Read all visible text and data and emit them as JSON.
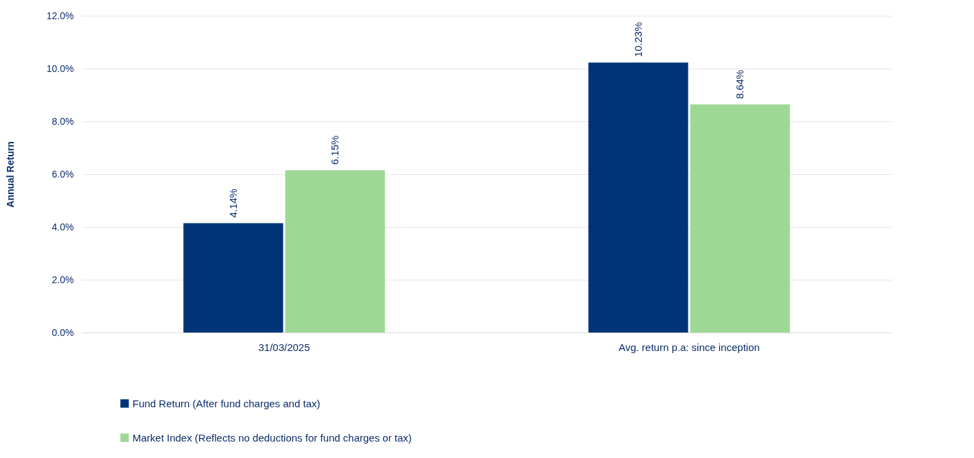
{
  "chart_data": {
    "type": "bar",
    "ylabel": "Annual Return",
    "categories": [
      "31/03/2025",
      "Avg. return p.a: since inception"
    ],
    "series": [
      {
        "name": "Fund Return (After fund charges and tax)",
        "color": "#003478",
        "values": [
          4.14,
          10.23
        ],
        "value_labels": [
          "4.14%",
          "10.23%"
        ]
      },
      {
        "name": "Market Index (Reflects no deductions for fund charges or tax)",
        "color": "#9dd995",
        "values": [
          6.15,
          8.64
        ],
        "value_labels": [
          "6.15%",
          "8.64%"
        ]
      }
    ],
    "ylim": [
      0,
      12
    ],
    "yticks": [
      {
        "value": 0,
        "label": "0.0%"
      },
      {
        "value": 2,
        "label": "2.0%"
      },
      {
        "value": 4,
        "label": "4.0%"
      },
      {
        "value": 6,
        "label": "6.0%"
      },
      {
        "value": 8,
        "label": "8.0%"
      },
      {
        "value": 10,
        "label": "10.0%"
      },
      {
        "value": 12,
        "label": "12.0%"
      }
    ],
    "grid": "y",
    "legend": "bottom"
  }
}
